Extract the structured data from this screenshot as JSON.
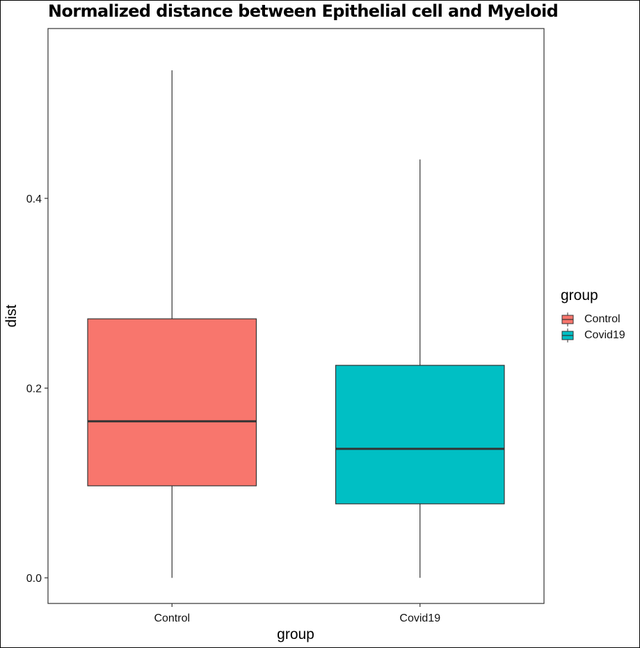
{
  "chart_data": {
    "type": "box",
    "title": "Normalized distance between Epithelial cell and Myeloid",
    "xlabel": "group",
    "ylabel": "dist",
    "categories": [
      "Control",
      "Covid19"
    ],
    "yticks": [
      0.0,
      0.2,
      0.4
    ],
    "ytick_labels": [
      "0.0",
      "0.2",
      "0.4"
    ],
    "ylim": [
      -0.027,
      0.579
    ],
    "boxes": [
      {
        "name": "Control",
        "min": 0.0,
        "q1": 0.097,
        "median": 0.165,
        "q3": 0.273,
        "max": 0.535
      },
      {
        "name": "Covid19",
        "min": 0.0,
        "q1": 0.078,
        "median": 0.136,
        "q3": 0.224,
        "max": 0.441
      }
    ],
    "colors": {
      "Control": "#F8766D",
      "Covid19": "#00BFC4"
    },
    "legend": {
      "title": "group",
      "position": "right",
      "entries": [
        "Control",
        "Covid19"
      ]
    }
  }
}
